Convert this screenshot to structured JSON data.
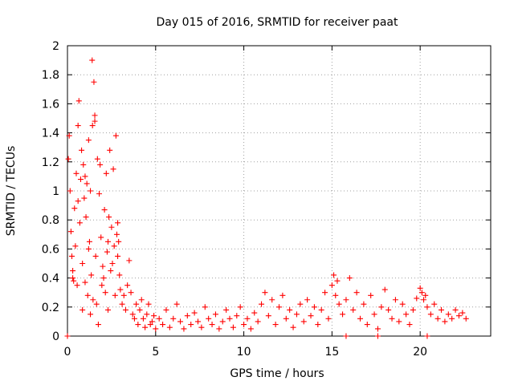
{
  "chart_data": {
    "type": "scatter",
    "title": "Day 015 of 2016, SRMTID for receiver paat",
    "xlabel": "GPS time / hours",
    "ylabel": "SRMTID / TECUs",
    "xlim": [
      0,
      24
    ],
    "ylim": [
      0,
      2
    ],
    "xticks": [
      0,
      5,
      10,
      15,
      20
    ],
    "xtick_labels": [
      "0",
      "5",
      "10",
      "15",
      "20"
    ],
    "yticks": [
      0,
      0.2,
      0.4,
      0.6,
      0.8,
      1,
      1.2,
      1.4,
      1.6,
      1.8,
      2
    ],
    "ytick_labels": [
      "0",
      "0.2",
      "0.4",
      "0.6",
      "0.8",
      "1",
      "1.2",
      "1.4",
      "1.6",
      "1.8",
      "2"
    ],
    "grid": true,
    "marker": "+",
    "color": "#ff0000",
    "series": [
      {
        "name": "SRMTID",
        "x": [
          0.05,
          0.1,
          0.15,
          0.2,
          0.25,
          0.3,
          0.35,
          0.4,
          0.45,
          0.5,
          0.55,
          0.6,
          0.65,
          0.7,
          0.75,
          0.8,
          0.85,
          0.9,
          0.95,
          1.0,
          1.05,
          1.1,
          1.15,
          1.2,
          1.25,
          1.3,
          1.35,
          1.4,
          1.45,
          1.5,
          1.55,
          1.6,
          1.65,
          1.7,
          1.75,
          1.8,
          1.85,
          1.9,
          1.95,
          2.0,
          2.05,
          2.1,
          2.15,
          2.2,
          2.25,
          2.3,
          2.35,
          2.4,
          2.45,
          2.5,
          2.55,
          2.6,
          2.65,
          2.7,
          2.75,
          2.8,
          2.85,
          2.9,
          2.95,
          3.0,
          3.1,
          3.2,
          3.3,
          3.4,
          3.5,
          3.6,
          3.7,
          3.8,
          3.9,
          4.0,
          4.1,
          4.2,
          4.3,
          4.4,
          4.5,
          4.6,
          4.7,
          4.8,
          4.9,
          5.0,
          5.2,
          5.4,
          5.6,
          5.8,
          6.0,
          6.2,
          6.4,
          6.6,
          6.8,
          7.0,
          7.2,
          7.4,
          7.6,
          7.8,
          8.0,
          8.2,
          8.4,
          8.6,
          8.8,
          9.0,
          9.2,
          9.4,
          9.6,
          9.8,
          10.0,
          10.2,
          10.4,
          10.6,
          10.8,
          11.0,
          11.2,
          11.4,
          11.6,
          11.8,
          12.0,
          12.2,
          12.4,
          12.6,
          12.8,
          13.0,
          13.2,
          13.4,
          13.6,
          13.8,
          14.0,
          14.2,
          14.4,
          14.6,
          14.8,
          15.0,
          15.1,
          15.2,
          15.3,
          15.4,
          15.6,
          15.8,
          16.0,
          16.2,
          16.4,
          16.6,
          16.8,
          17.0,
          17.2,
          17.4,
          17.6,
          17.8,
          18.0,
          18.2,
          18.4,
          18.6,
          18.8,
          19.0,
          19.2,
          19.4,
          19.6,
          19.8,
          20.0,
          20.1,
          20.2,
          20.3,
          20.4,
          20.6,
          20.8,
          21.0,
          21.2,
          21.4,
          21.6,
          21.8,
          22.0,
          22.2,
          22.4,
          22.6,
          0.0,
          15.8,
          17.6,
          20.4,
          1.42,
          1.55,
          0.85,
          1.2,
          0.6,
          2.3,
          2.85,
          0.3,
          1.0,
          1.3
        ],
        "y": [
          1.22,
          1.38,
          1.0,
          0.72,
          0.55,
          0.45,
          0.38,
          0.88,
          0.62,
          1.12,
          0.35,
          1.45,
          1.62,
          0.78,
          1.08,
          1.28,
          0.5,
          1.18,
          0.95,
          0.37,
          0.82,
          1.05,
          0.28,
          1.35,
          0.65,
          0.15,
          0.42,
          1.9,
          0.25,
          1.75,
          1.48,
          0.55,
          0.22,
          1.22,
          0.08,
          0.98,
          1.18,
          0.68,
          0.35,
          0.48,
          0.4,
          0.87,
          0.3,
          1.12,
          0.58,
          0.18,
          0.82,
          1.28,
          0.45,
          0.75,
          0.5,
          1.15,
          0.62,
          0.28,
          1.38,
          0.7,
          0.55,
          0.65,
          0.42,
          0.32,
          0.22,
          0.28,
          0.18,
          0.35,
          0.52,
          0.3,
          0.15,
          0.12,
          0.22,
          0.08,
          0.18,
          0.25,
          0.12,
          0.06,
          0.15,
          0.22,
          0.08,
          0.1,
          0.14,
          0.05,
          0.12,
          0.08,
          0.18,
          0.06,
          0.12,
          0.22,
          0.1,
          0.05,
          0.14,
          0.08,
          0.16,
          0.1,
          0.06,
          0.2,
          0.12,
          0.08,
          0.15,
          0.05,
          0.1,
          0.18,
          0.12,
          0.06,
          0.14,
          0.2,
          0.08,
          0.12,
          0.05,
          0.16,
          0.1,
          0.22,
          0.3,
          0.14,
          0.25,
          0.08,
          0.2,
          0.28,
          0.12,
          0.18,
          0.06,
          0.15,
          0.22,
          0.1,
          0.25,
          0.14,
          0.2,
          0.08,
          0.18,
          0.3,
          0.12,
          0.35,
          0.42,
          0.28,
          0.38,
          0.22,
          0.15,
          0.25,
          0.4,
          0.18,
          0.3,
          0.12,
          0.22,
          0.08,
          0.28,
          0.15,
          0.05,
          0.2,
          0.32,
          0.18,
          0.12,
          0.25,
          0.1,
          0.22,
          0.15,
          0.08,
          0.18,
          0.26,
          0.33,
          0.3,
          0.25,
          0.28,
          0.2,
          0.15,
          0.22,
          0.12,
          0.18,
          0.1,
          0.15,
          0.12,
          0.18,
          0.14,
          0.16,
          0.12,
          0.0,
          0.0,
          0.0,
          0.0,
          1.45,
          1.52,
          0.18,
          0.6,
          0.93,
          0.65,
          0.78,
          0.4,
          1.1,
          1.0
        ]
      }
    ]
  }
}
